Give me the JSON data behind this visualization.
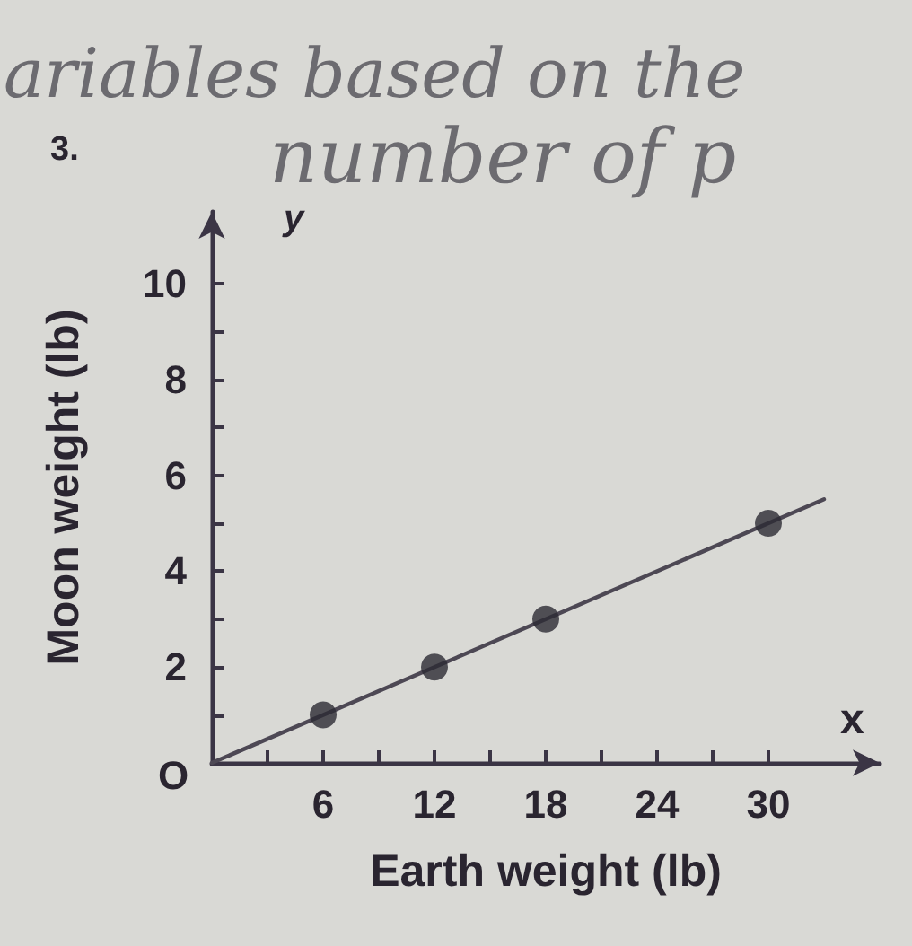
{
  "chart_data": {
    "type": "scatter",
    "xlabel": "Earth weight (lb)",
    "ylabel": "Moon weight (lb)",
    "annotations": [
      "ariables based on the",
      "number of p",
      "3.",
      "O",
      "x",
      "y"
    ],
    "series": [
      {
        "color": "#2c2a33",
        "x": [
          6,
          12,
          18,
          30
        ],
        "values": [
          1,
          2,
          3,
          5
        ]
      },
      {
        "type": "line",
        "color": "#4d4854",
        "x": [
          0,
          33
        ],
        "values": [
          0,
          5.5
        ]
      }
    ],
    "xlim": [
      0,
      36
    ],
    "xticks": [
      {
        "value": 3,
        "label": null
      },
      6,
      {
        "value": 9,
        "label": null
      },
      12,
      {
        "value": 15,
        "label": null
      },
      18,
      {
        "value": 21,
        "label": null
      },
      24,
      {
        "value": 27,
        "label": null
      },
      30
    ],
    "ylim": [
      0,
      11.5
    ],
    "yticks": [
      {
        "value": 1,
        "label": null
      },
      2,
      {
        "value": 3,
        "label": null
      },
      4,
      {
        "value": 5,
        "label": null
      },
      6,
      {
        "value": 7,
        "label": null
      },
      8,
      {
        "value": 9,
        "label": null
      },
      10
    ]
  }
}
